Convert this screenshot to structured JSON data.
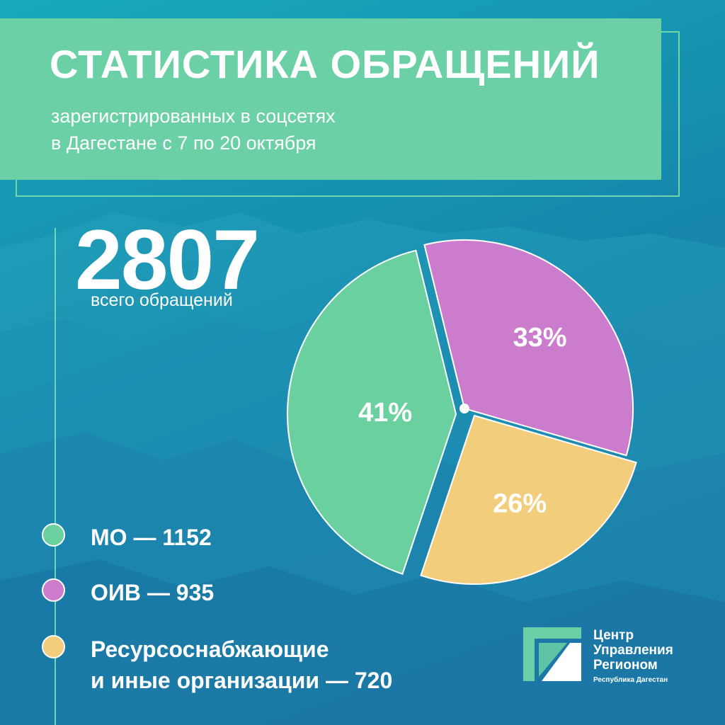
{
  "header": {
    "title": "СТАТИСТИКА ОБРАЩЕНИЙ",
    "subtitle": "зарегистрированных в соцсетях\nв Дагестане с 7 по 20 октября"
  },
  "total": {
    "value": "2807",
    "label": "всего обращений"
  },
  "chart_data": {
    "type": "pie",
    "series": [
      {
        "label": "МО — 1152",
        "value": 1152,
        "percent_label": "41%",
        "color": "#6bd0a0"
      },
      {
        "label": "ОИВ — 935",
        "value": 935,
        "percent_label": "33%",
        "color": "#cc7ccc"
      },
      {
        "label": "Ресурсоснабжающие\nи иные организации — 720",
        "value": 720,
        "percent_label": "26%",
        "color": "#f2cd7c"
      }
    ],
    "title": "",
    "legend": "bottom-left"
  },
  "logo": {
    "name": "Центр\nУправления\nРегионом",
    "region": "Республика Дагестан"
  },
  "colors": {
    "accent_green": "#6bd0a6",
    "background": "#1688ad"
  }
}
